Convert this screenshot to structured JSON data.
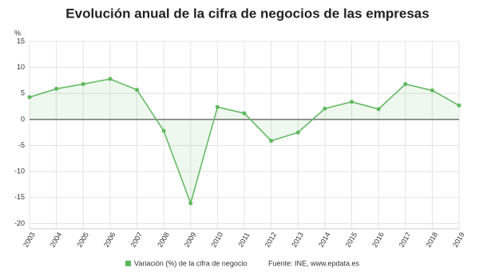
{
  "chart_data": {
    "type": "area",
    "title": "Evolución anual de la cifra de negocios de las empresas",
    "y_label": "%",
    "categories": [
      "2003",
      "2004",
      "2005",
      "2006",
      "2007",
      "2008",
      "2009",
      "2010",
      "2011",
      "2012",
      "2013",
      "2014",
      "2015",
      "2016",
      "2017",
      "2018",
      "2019"
    ],
    "series": [
      {
        "name": "Variación (%) de la cifra de negocio",
        "color": "#5cb85c",
        "values": [
          4.3,
          5.9,
          6.8,
          7.8,
          5.7,
          -2.2,
          -16.1,
          2.4,
          1.2,
          -4.1,
          -2.5,
          2.1,
          3.4,
          2.0,
          6.8,
          5.6,
          2.7
        ]
      }
    ],
    "source": "Fuente: INE, www.epdata.es",
    "ylim": [
      -21,
      15
    ],
    "yticks": [
      15,
      10,
      5,
      0,
      -5,
      -10,
      -15,
      -20
    ],
    "grid": true
  }
}
